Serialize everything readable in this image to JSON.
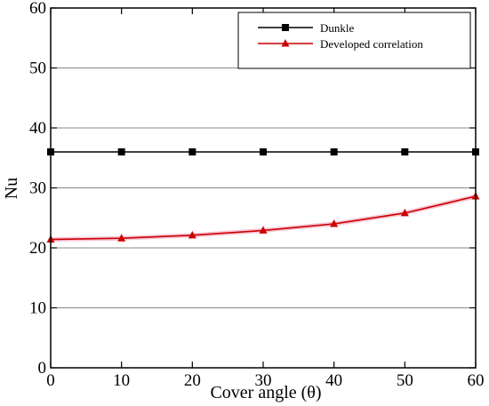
{
  "chart_data": {
    "type": "line",
    "xlabel": "Cover angle (θ)",
    "ylabel": "Nu",
    "xlim": [
      0,
      60
    ],
    "ylim": [
      0,
      60
    ],
    "xticks": [
      "0",
      "10",
      "20",
      "30",
      "40",
      "50",
      "60"
    ],
    "yticks": [
      "0",
      "10",
      "20",
      "30",
      "40",
      "50",
      "60"
    ],
    "grid": "horizontal",
    "legend_position": "top-right",
    "x": [
      0,
      10,
      20,
      30,
      40,
      50,
      60
    ],
    "series": [
      {
        "name": "Dunkle",
        "values": [
          36,
          36,
          36,
          36,
          36,
          36,
          36
        ],
        "color": "#000000",
        "marker": "square"
      },
      {
        "name": "Developed correlation",
        "values": [
          21.4,
          21.6,
          22.1,
          22.9,
          24.0,
          25.8,
          28.6
        ],
        "color": "#cc0000",
        "marker": "triangle"
      }
    ]
  }
}
